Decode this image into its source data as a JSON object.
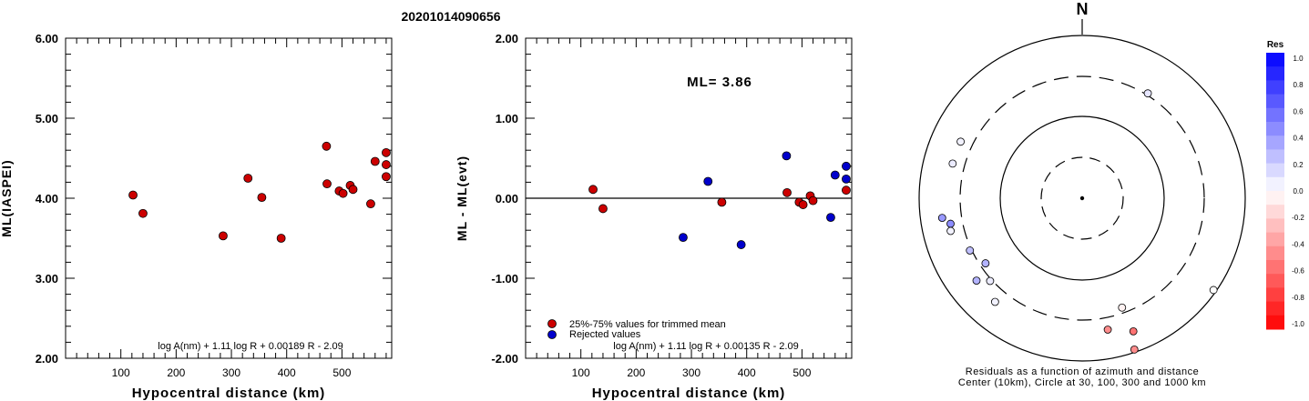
{
  "title": "20201014090656",
  "colors": {
    "red": "#cc0000",
    "blue": "#0000cc",
    "black": "#000000"
  },
  "chart_data": [
    {
      "type": "scatter",
      "id": "left",
      "xlabel": "Hypocentral distance (km)",
      "ylabel": "ML(IASPEI)",
      "xlim": [
        0,
        590
      ],
      "ylim": [
        2.0,
        6.0
      ],
      "xticks": [
        100,
        200,
        300,
        400,
        500
      ],
      "xtick_labels": [
        "100",
        "200",
        "300",
        "400",
        "500"
      ],
      "yticks": [
        2.0,
        3.0,
        4.0,
        5.0,
        6.0
      ],
      "ytick_labels": [
        "2.00",
        "3.00",
        "4.00",
        "5.00",
        "6.00"
      ],
      "formula": "log A(nm) + 1.11 log R + 0.00189 R - 2.09",
      "points": [
        {
          "x": 122,
          "y": 4.04
        },
        {
          "x": 140,
          "y": 3.81
        },
        {
          "x": 285,
          "y": 3.53
        },
        {
          "x": 330,
          "y": 4.25
        },
        {
          "x": 355,
          "y": 4.01
        },
        {
          "x": 390,
          "y": 3.5
        },
        {
          "x": 472,
          "y": 4.65
        },
        {
          "x": 473,
          "y": 4.18
        },
        {
          "x": 495,
          "y": 4.09
        },
        {
          "x": 502,
          "y": 4.06
        },
        {
          "x": 515,
          "y": 4.16
        },
        {
          "x": 520,
          "y": 4.11
        },
        {
          "x": 552,
          "y": 3.93
        },
        {
          "x": 560,
          "y": 4.46
        },
        {
          "x": 580,
          "y": 4.57
        },
        {
          "x": 580,
          "y": 4.42
        },
        {
          "x": 580,
          "y": 4.27
        }
      ]
    },
    {
      "type": "scatter",
      "id": "middle",
      "xlabel": "Hypocentral distance (km)",
      "ylabel": "ML - ML(evt)",
      "xlim": [
        0,
        590
      ],
      "ylim": [
        -2.0,
        2.0
      ],
      "xticks": [
        100,
        200,
        300,
        400,
        500
      ],
      "xtick_labels": [
        "100",
        "200",
        "300",
        "400",
        "500"
      ],
      "yticks": [
        -2.0,
        -1.0,
        0.0,
        1.0,
        2.0
      ],
      "ytick_labels": [
        "-2.00",
        "-1.00",
        "0.00",
        "1.00",
        "2.00"
      ],
      "annotation": "ML= 3.86",
      "formula": "log A(nm) + 1.11 log R + 0.00135 R - 2.09",
      "legend": [
        {
          "label": "25%-75% values for trimmed mean",
          "color": "#cc0000"
        },
        {
          "label": "Rejected values",
          "color": "#0000cc"
        }
      ],
      "series": [
        {
          "color": "red",
          "points": [
            {
              "x": 122,
              "y": 0.11
            },
            {
              "x": 140,
              "y": -0.13
            },
            {
              "x": 355,
              "y": -0.05
            },
            {
              "x": 473,
              "y": 0.07
            },
            {
              "x": 495,
              "y": -0.05
            },
            {
              "x": 502,
              "y": -0.08
            },
            {
              "x": 515,
              "y": 0.03
            },
            {
              "x": 520,
              "y": -0.03
            },
            {
              "x": 580,
              "y": 0.1
            }
          ]
        },
        {
          "color": "blue",
          "points": [
            {
              "x": 285,
              "y": -0.49
            },
            {
              "x": 330,
              "y": 0.21
            },
            {
              "x": 390,
              "y": -0.58
            },
            {
              "x": 472,
              "y": 0.53
            },
            {
              "x": 552,
              "y": -0.24
            },
            {
              "x": 560,
              "y": 0.29
            },
            {
              "x": 580,
              "y": 0.4
            },
            {
              "x": 580,
              "y": 0.24
            }
          ]
        }
      ]
    },
    {
      "type": "polar-scatter",
      "id": "right",
      "north_label": "N",
      "caption_line1": "Residuals as a function of azimuth and distance",
      "caption_line2": "Center (10km), Circle at 30, 100, 300 and 1000 km",
      "points": [
        {
          "az": 32,
          "r": 0.85,
          "res": 0.1
        },
        {
          "az": 295,
          "r": 0.92,
          "res": 0.05
        },
        {
          "az": 285,
          "r": 0.92,
          "res": 0.08
        },
        {
          "az": 262,
          "r": 0.97,
          "res": 0.4
        },
        {
          "az": 259,
          "r": 0.92,
          "res": 0.45
        },
        {
          "az": 256,
          "r": 0.93,
          "res": 0.05
        },
        {
          "az": 245,
          "r": 0.85,
          "res": 0.25
        },
        {
          "az": 232,
          "r": 0.92,
          "res": 0.3
        },
        {
          "az": 228,
          "r": 0.85,
          "res": 0.08
        },
        {
          "az": 236,
          "r": 0.8,
          "res": 0.3
        },
        {
          "az": 220,
          "r": 0.93,
          "res": 0.05
        },
        {
          "az": 160,
          "r": 0.8,
          "res": -0.05
        },
        {
          "az": 169,
          "r": 0.92,
          "res": -0.45
        },
        {
          "az": 159,
          "r": 0.98,
          "res": -0.55
        },
        {
          "az": 161,
          "r": 1.1,
          "res": -0.45
        },
        {
          "az": 125,
          "r": 1.1,
          "res": 0.0
        }
      ],
      "colorbar": {
        "title": "Res",
        "ticks": [
          "1.0",
          "0.8",
          "0.6",
          "0.4",
          "0.2",
          "0.0",
          "-0.2",
          "-0.4",
          "-0.6",
          "-0.8",
          "-1.0"
        ]
      }
    }
  ]
}
